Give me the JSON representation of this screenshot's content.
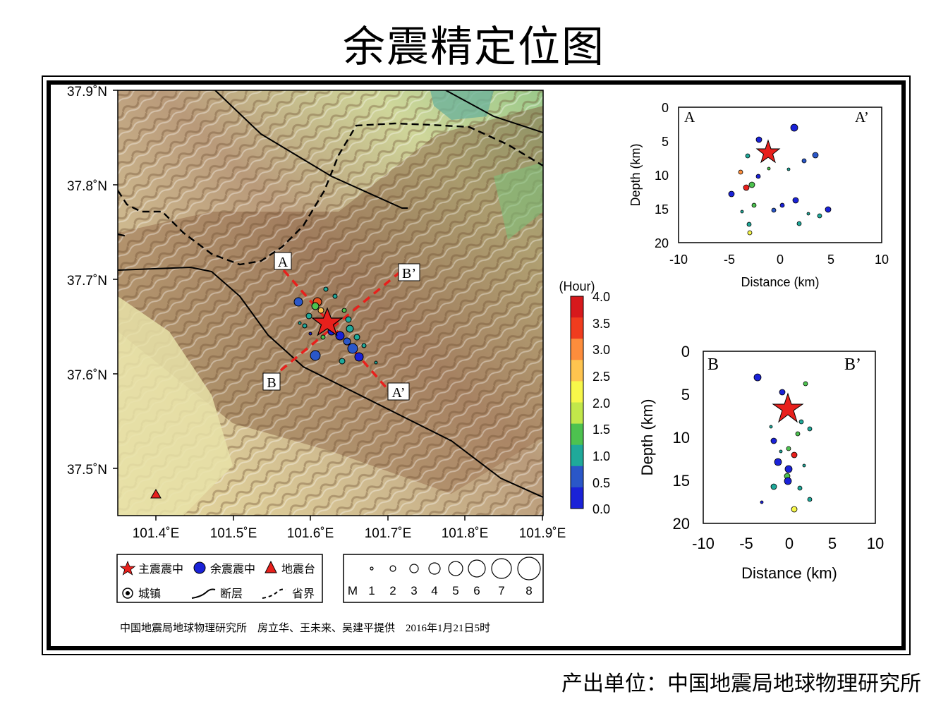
{
  "title": "余震精定位图",
  "producer": "产出单位：中国地震局地球物理研究所",
  "map": {
    "lat_labels": [
      "37.9˚N",
      "37.8˚N",
      "37.7˚N",
      "37.6˚N",
      "37.5˚N"
    ],
    "lon_labels": [
      "101.4˚E",
      "101.5˚E",
      "101.6˚E",
      "101.7˚E",
      "101.8˚E",
      "101.9˚E"
    ],
    "profile_labels": {
      "a": "A",
      "a_prime": "A’",
      "b": "B",
      "b_prime": "B’"
    },
    "colorbar": {
      "title": "(Hour)",
      "ticks": [
        "4.0",
        "3.5",
        "3.0",
        "2.5",
        "2.0",
        "1.5",
        "1.0",
        "0.5",
        "0.0"
      ],
      "colors": [
        "#d7191c",
        "#f03c1e",
        "#fd8d3c",
        "#fec44f",
        "#f7f74a",
        "#c2e84a",
        "#4dc24f",
        "#1fa99a",
        "#2a57c8",
        "#1a22d8"
      ]
    }
  },
  "legend": {
    "mainshock": "主震震中",
    "aftershock": "余震震中",
    "station": "地震台",
    "town": "城镇",
    "fault": "断层",
    "province": "省界"
  },
  "magnitude_scale": {
    "label": "M",
    "values": [
      "1",
      "2",
      "3",
      "4",
      "5",
      "6",
      "7",
      "8"
    ]
  },
  "credit": "中国地震局地球物理研究所    房立华、王未来、吴建平提供    2016年1月21日5时",
  "profile_aa": {
    "corner_left": "A",
    "corner_right": "A’",
    "x_ticks": [
      "-10",
      "-5",
      "0",
      "5",
      "10"
    ],
    "y_ticks": [
      "0",
      "5",
      "10",
      "15",
      "20"
    ],
    "xlabel": "Distance (km)",
    "ylabel": "Depth (km)"
  },
  "profile_bb": {
    "corner_left": "B",
    "corner_right": "B’",
    "x_ticks": [
      "-10",
      "-5",
      "0",
      "5",
      "10"
    ],
    "y_ticks": [
      "0",
      "5",
      "10",
      "15",
      "20"
    ],
    "xlabel": "Distance (km)",
    "ylabel": "Depth (km)"
  }
}
